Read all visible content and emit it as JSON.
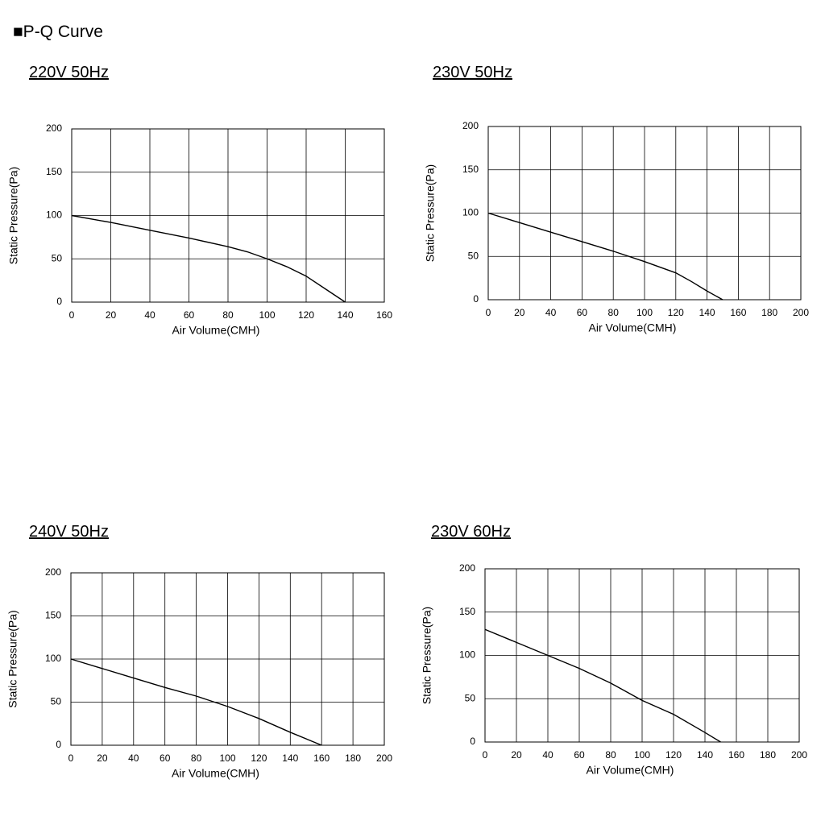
{
  "page_title": "■P-Q Curve",
  "chart_data": [
    {
      "type": "line",
      "title": "220V 50Hz",
      "x_label": "Air Volume(CMH)",
      "y_label": "Static Pressure(Pa)",
      "x": [
        0,
        20,
        40,
        60,
        80,
        90,
        100,
        110,
        120,
        130,
        140
      ],
      "values": [
        100,
        92,
        83,
        74,
        64,
        58,
        50,
        41,
        30,
        15,
        0
      ],
      "color": "#000000",
      "xlim": [
        0,
        160
      ],
      "xticks": [
        0,
        20,
        40,
        60,
        80,
        100,
        120,
        140,
        160
      ],
      "ylim": [
        0,
        200
      ],
      "yticks": [
        0,
        50,
        100,
        150,
        200
      ],
      "grid": true
    },
    {
      "type": "line",
      "title": "230V 50Hz",
      "x_label": "Air Volume(CMH)",
      "y_label": "Static Pressure(Pa)",
      "x": [
        0,
        20,
        40,
        60,
        80,
        100,
        120,
        130,
        140,
        150
      ],
      "values": [
        100,
        89,
        78,
        67,
        56,
        44,
        31,
        21,
        10,
        0
      ],
      "color": "#000000",
      "xlim": [
        0,
        200
      ],
      "xticks": [
        0,
        20,
        40,
        60,
        80,
        100,
        120,
        140,
        160,
        180,
        200
      ],
      "ylim": [
        0,
        200
      ],
      "yticks": [
        0,
        50,
        100,
        150,
        200
      ],
      "grid": true
    },
    {
      "type": "line",
      "title": "240V 50Hz",
      "x_label": "Air Volume(CMH)",
      "y_label": "Static Pressure(Pa)",
      "x": [
        0,
        20,
        40,
        60,
        80,
        100,
        120,
        140,
        160
      ],
      "values": [
        100,
        89,
        78,
        67,
        57,
        45,
        31,
        15,
        0
      ],
      "color": "#000000",
      "xlim": [
        0,
        200
      ],
      "xticks": [
        0,
        20,
        40,
        60,
        80,
        100,
        120,
        140,
        160,
        180,
        200
      ],
      "ylim": [
        0,
        200
      ],
      "yticks": [
        0,
        50,
        100,
        150,
        200
      ],
      "grid": true
    },
    {
      "type": "line",
      "title": "230V 60Hz",
      "x_label": "Air Volume(CMH)",
      "y_label": "Static Pressure(Pa)",
      "x": [
        0,
        20,
        40,
        60,
        80,
        100,
        120,
        140,
        150
      ],
      "values": [
        130,
        115,
        100,
        85,
        68,
        48,
        32,
        11,
        0
      ],
      "color": "#000000",
      "xlim": [
        0,
        200
      ],
      "xticks": [
        0,
        20,
        40,
        60,
        80,
        100,
        120,
        140,
        160,
        180,
        200
      ],
      "ylim": [
        0,
        200
      ],
      "yticks": [
        0,
        50,
        100,
        150,
        200
      ],
      "grid": true
    }
  ]
}
